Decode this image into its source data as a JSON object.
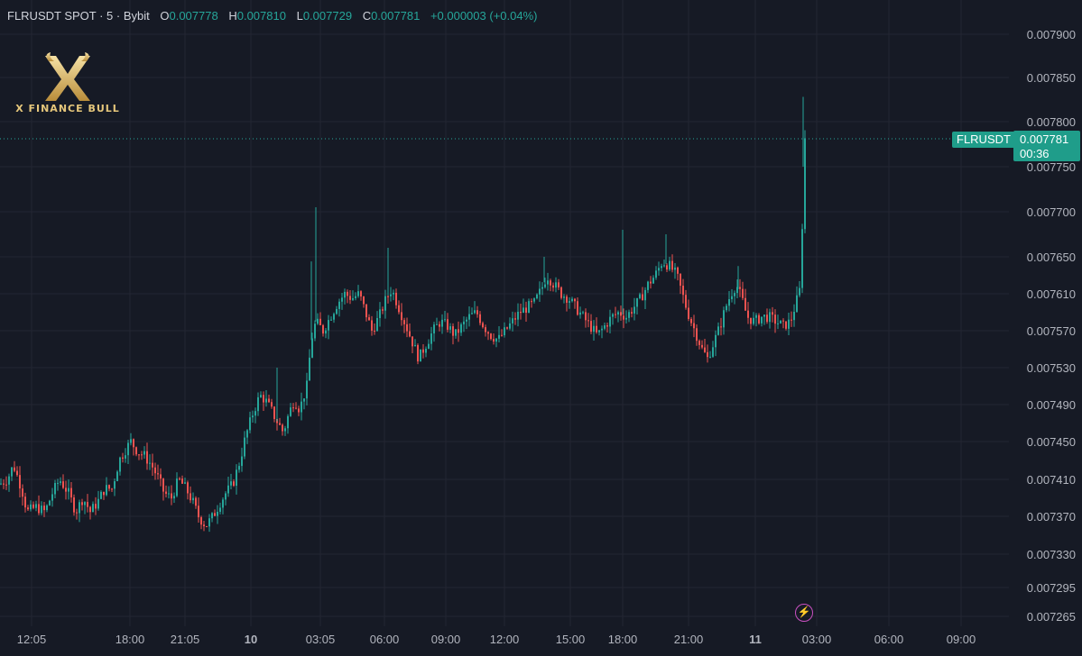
{
  "header": {
    "symbol": "FLRUSDT SPOT · 5 · Bybit",
    "open_label": "O",
    "open": "0.007778",
    "high_label": "H",
    "high": "0.007810",
    "low_label": "L",
    "low": "0.007729",
    "close_label": "C",
    "close": "0.007781",
    "change": "+0.000003 (+0.04%)"
  },
  "logo": {
    "text": "X FINANCE BULL"
  },
  "price_badge": {
    "symbol": "FLRUSDT",
    "price": "0.007781",
    "countdown": "00:36"
  },
  "icons": {
    "bolt": "lightning-bolt-icon"
  },
  "colors": {
    "up": "#26a69a",
    "down": "#ef5350",
    "background": "#161a25",
    "grid": "#232632",
    "badge": "#1f9d8a"
  },
  "chart_data": {
    "type": "candlestick",
    "interval": "5",
    "grid": true,
    "y_ticks": [
      "0.007900",
      "0.007850",
      "0.007800",
      "0.007750",
      "0.007700",
      "0.007650",
      "0.007610",
      "0.007570",
      "0.007530",
      "0.007490",
      "0.007450",
      "0.007410",
      "0.007370",
      "0.007330",
      "0.007295",
      "0.007265"
    ],
    "x_ticks": [
      "12:05",
      "18:00",
      "21:05",
      "10",
      "03:05",
      "06:00",
      "09:00",
      "12:00",
      "15:00",
      "18:00",
      "21:00",
      "11",
      "03:00",
      "06:00",
      "09:00"
    ],
    "x_ticks_bold": [
      "10",
      "11"
    ],
    "last_price": 0.007781,
    "path": [
      [
        0,
        0.007405
      ],
      [
        8,
        0.00741
      ],
      [
        15,
        0.007425
      ],
      [
        24,
        0.0074
      ],
      [
        30,
        0.007375
      ],
      [
        40,
        0.00738
      ],
      [
        50,
        0.007375
      ],
      [
        58,
        0.007395
      ],
      [
        66,
        0.00741
      ],
      [
        76,
        0.007395
      ],
      [
        84,
        0.007375
      ],
      [
        92,
        0.00739
      ],
      [
        100,
        0.007375
      ],
      [
        108,
        0.007385
      ],
      [
        116,
        0.0074
      ],
      [
        124,
        0.0074
      ],
      [
        132,
        0.00743
      ],
      [
        138,
        0.00744
      ],
      [
        145,
        0.00745
      ],
      [
        152,
        0.00744
      ],
      [
        160,
        0.007435
      ],
      [
        168,
        0.007425
      ],
      [
        176,
        0.00741
      ],
      [
        182,
        0.007395
      ],
      [
        190,
        0.00739
      ],
      [
        198,
        0.00741
      ],
      [
        206,
        0.0074
      ],
      [
        214,
        0.007385
      ],
      [
        220,
        0.00737
      ],
      [
        228,
        0.00736
      ],
      [
        236,
        0.00737
      ],
      [
        244,
        0.007385
      ],
      [
        250,
        0.007395
      ],
      [
        258,
        0.007405
      ],
      [
        266,
        0.00743
      ],
      [
        272,
        0.007455
      ],
      [
        280,
        0.00748
      ],
      [
        288,
        0.0075
      ],
      [
        294,
        0.007495
      ],
      [
        300,
        0.007485
      ],
      [
        308,
        0.00747
      ],
      [
        314,
        0.00746
      ],
      [
        320,
        0.00748
      ],
      [
        326,
        0.007495
      ],
      [
        332,
        0.007485
      ],
      [
        340,
        0.00751
      ],
      [
        345,
        0.00756
      ],
      [
        350,
        0.00758
      ],
      [
        358,
        0.00757
      ],
      [
        366,
        0.007585
      ],
      [
        374,
        0.0076
      ],
      [
        382,
        0.00761
      ],
      [
        390,
        0.007605
      ],
      [
        398,
        0.00761
      ],
      [
        405,
        0.00759
      ],
      [
        412,
        0.00757
      ],
      [
        420,
        0.007585
      ],
      [
        428,
        0.007605
      ],
      [
        434,
        0.007615
      ],
      [
        440,
        0.0076
      ],
      [
        448,
        0.00758
      ],
      [
        456,
        0.00756
      ],
      [
        464,
        0.00754
      ],
      [
        472,
        0.007555
      ],
      [
        480,
        0.00757
      ],
      [
        488,
        0.00758
      ],
      [
        496,
        0.007575
      ],
      [
        504,
        0.007565
      ],
      [
        512,
        0.007575
      ],
      [
        520,
        0.007585
      ],
      [
        528,
        0.00759
      ],
      [
        536,
        0.007575
      ],
      [
        544,
        0.007565
      ],
      [
        552,
        0.00756
      ],
      [
        560,
        0.00757
      ],
      [
        568,
        0.00758
      ],
      [
        576,
        0.00759
      ],
      [
        584,
        0.007595
      ],
      [
        592,
        0.0076
      ],
      [
        600,
        0.007615
      ],
      [
        606,
        0.00763
      ],
      [
        614,
        0.00762
      ],
      [
        622,
        0.00761
      ],
      [
        630,
        0.007605
      ],
      [
        638,
        0.007595
      ],
      [
        646,
        0.007585
      ],
      [
        654,
        0.007575
      ],
      [
        662,
        0.007565
      ],
      [
        670,
        0.007575
      ],
      [
        678,
        0.007585
      ],
      [
        686,
        0.00759
      ],
      [
        694,
        0.007585
      ],
      [
        702,
        0.007595
      ],
      [
        710,
        0.007605
      ],
      [
        718,
        0.00762
      ],
      [
        726,
        0.00763
      ],
      [
        734,
        0.007645
      ],
      [
        742,
        0.00764
      ],
      [
        750,
        0.00763
      ],
      [
        756,
        0.00761
      ],
      [
        762,
        0.00759
      ],
      [
        770,
        0.00757
      ],
      [
        778,
        0.00755
      ],
      [
        784,
        0.00754
      ],
      [
        790,
        0.007555
      ],
      [
        798,
        0.007575
      ],
      [
        804,
        0.007595
      ],
      [
        810,
        0.00761
      ],
      [
        816,
        0.00762
      ],
      [
        822,
        0.007605
      ],
      [
        828,
        0.007585
      ],
      [
        836,
        0.00758
      ],
      [
        844,
        0.007585
      ],
      [
        852,
        0.007585
      ],
      [
        860,
        0.00758
      ],
      [
        868,
        0.007575
      ],
      [
        876,
        0.00758
      ],
      [
        882,
        0.0076
      ],
      [
        888,
        0.00762
      ],
      [
        890,
        0.00775
      ],
      [
        892,
        0.007781
      ]
    ],
    "spikes": [
      [
        350,
        0.007705
      ],
      [
        345,
        0.007645
      ],
      [
        430,
        0.00766
      ],
      [
        690,
        0.00768
      ],
      [
        738,
        0.007675
      ],
      [
        818,
        0.00764
      ],
      [
        890,
        0.007828
      ],
      [
        307,
        0.00753
      ],
      [
        603,
        0.00765
      ]
    ]
  }
}
